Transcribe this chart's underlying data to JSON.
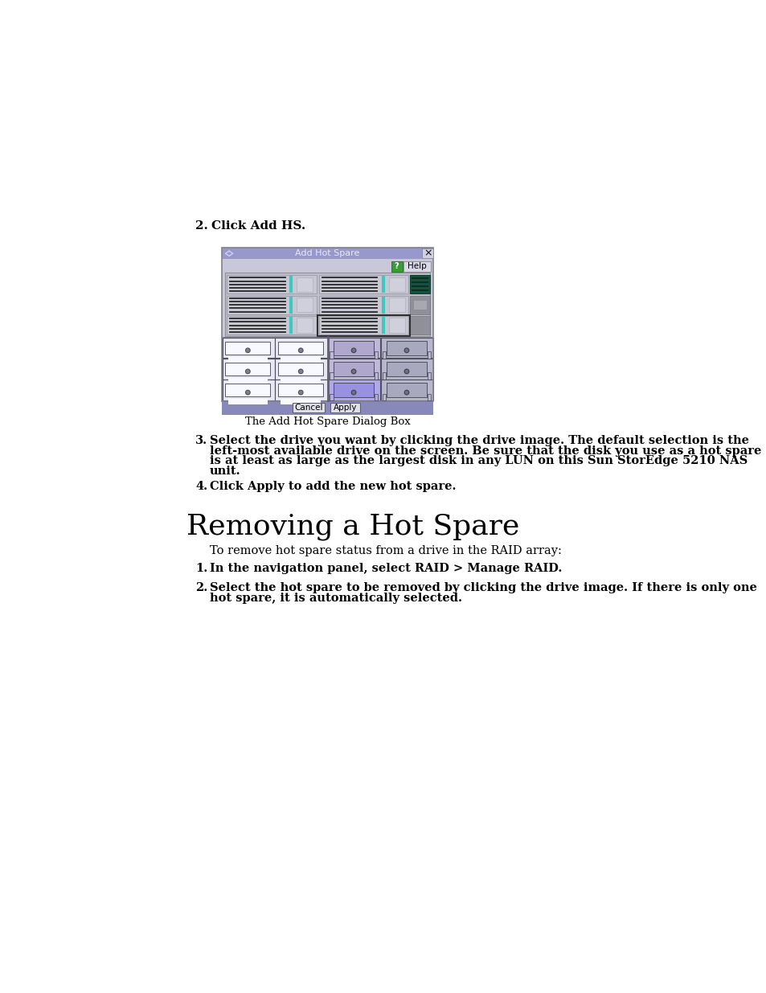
{
  "background_color": "#ffffff",
  "caption_text": "The Add Hot Spare Dialog Box",
  "dialog_title": "Add Hot Spare",
  "section_title": "Removing a Hot Spare",
  "intro_text": "To remove hot spare status from a drive in the RAID array:",
  "titlebar_color": "#9898cc",
  "dialog_outer_bg": "#c8c8d8",
  "dialog_inner_bg": "#c0c0cc",
  "server_bay_bg": "#b8b8c8",
  "server_drive_bg": "#c8c8d0",
  "server_drive_border": "#a0a0b0",
  "drive_grill_color": "#303030",
  "teal_handle": "#40c8c0",
  "dark_drive_bg": "#1a5040",
  "grey_panel": "#909098",
  "grid_bg": "#9090b8",
  "white_drive_bg": "#f0f0f8",
  "white_drive_inner": "#ffffff",
  "grey_drive_bg": "#b8b8c8",
  "grey_drive_body": "#a0a0b0",
  "purple_drive_bg": "#c0b0e8",
  "purple_drive_body": "#a898d8",
  "blue_drive_bg": "#a0a8e0",
  "blue_drive_body": "#8890d0",
  "button_bg": "#d8d8e0",
  "button_bar_bg": "#8888bb"
}
